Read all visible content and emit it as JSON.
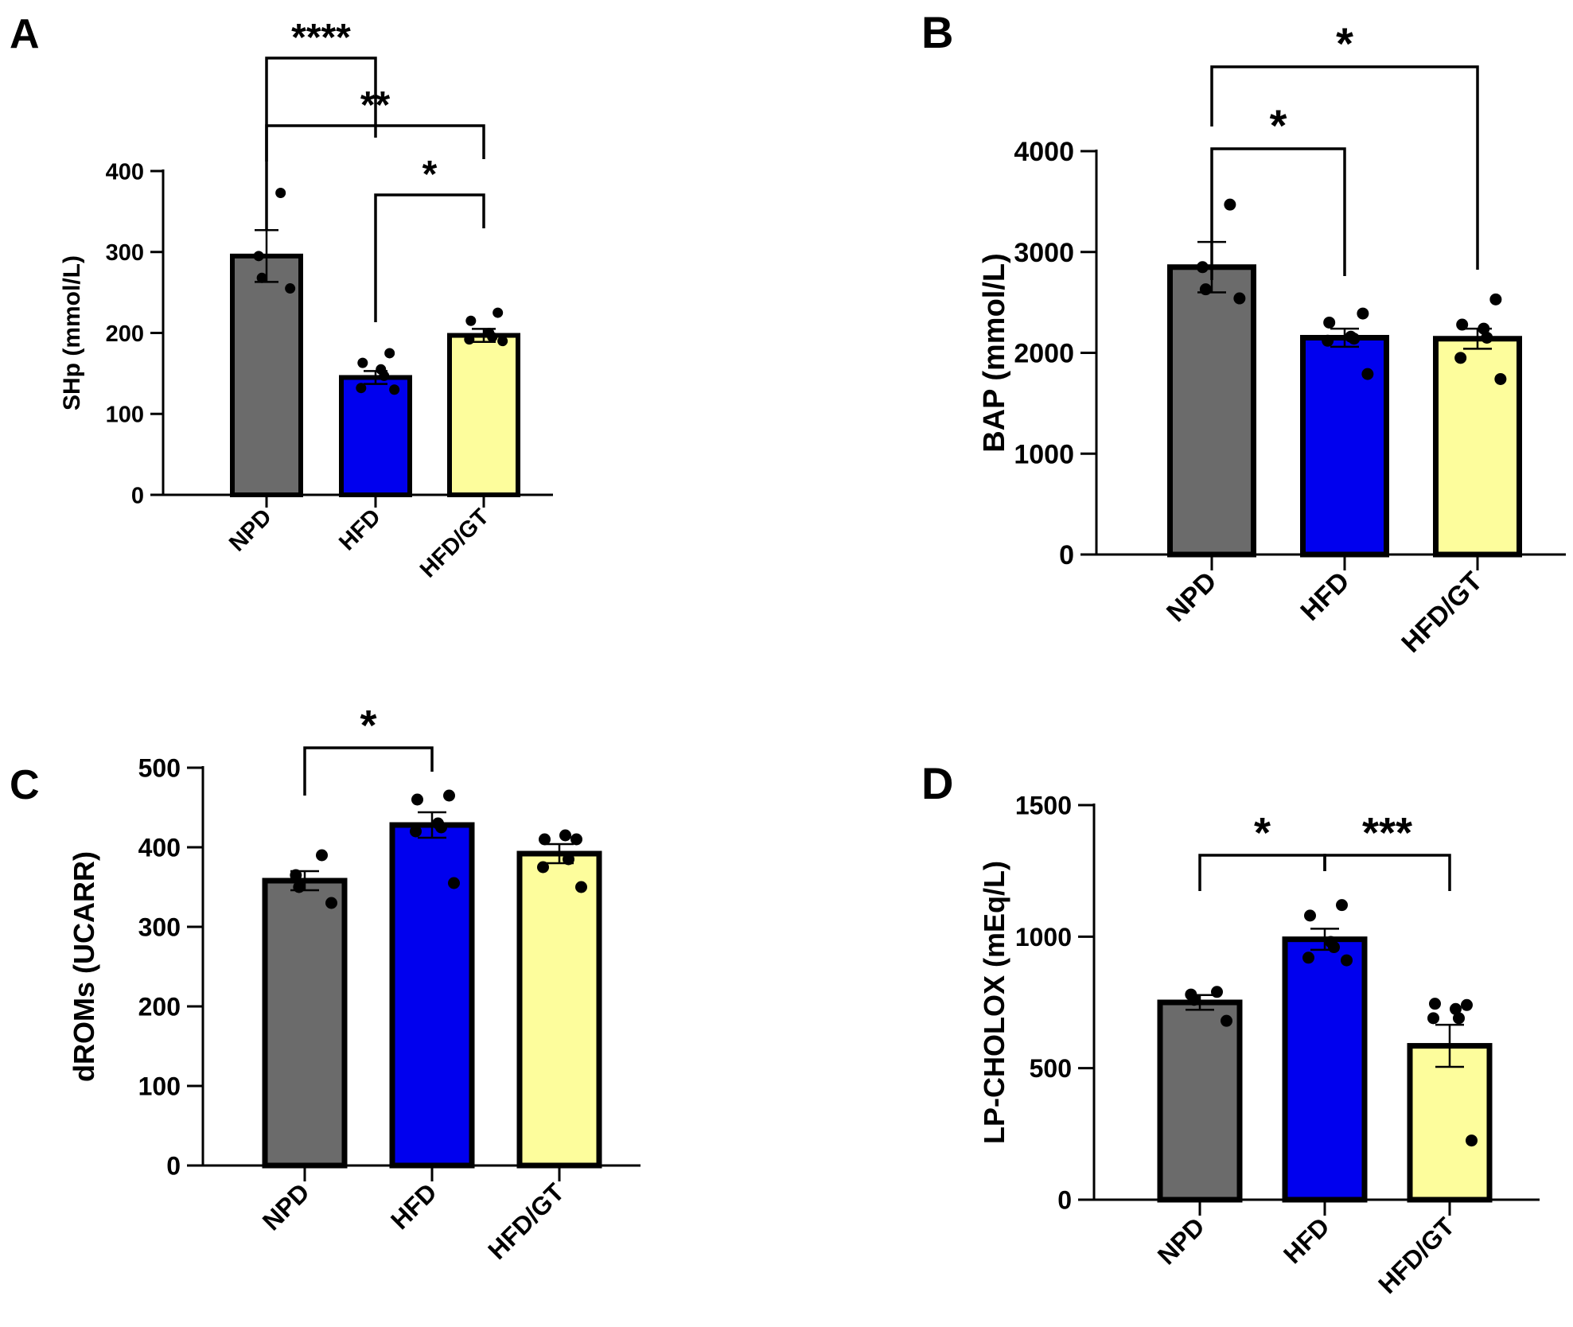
{
  "colors": {
    "NPD": "#6b6b6b",
    "HFD": "#0000ee",
    "HFD/GT": "#fdfd9c",
    "ink": "#000000"
  },
  "chart_data": [
    {
      "panel": "A",
      "type": "bar",
      "title": "",
      "xlabel": "",
      "ylabel": "SHp (mmol/L)",
      "ylim": [
        0,
        400
      ],
      "yticks": [
        "0",
        "100",
        "200",
        "300",
        "400"
      ],
      "categories": [
        "NPD",
        "HFD",
        "HFD/GT"
      ],
      "values": [
        295,
        145,
        197
      ],
      "sem": [
        32,
        8,
        8
      ],
      "points": [
        [
          373,
          295,
          268,
          255
        ],
        [
          175,
          163,
          155,
          147,
          132,
          130
        ],
        [
          225,
          215,
          200,
          195,
          192,
          190
        ]
      ],
      "comparisons": [
        {
          "from": 0,
          "to": 1,
          "label": "****"
        },
        {
          "from": 0,
          "to": 2,
          "label": "**"
        },
        {
          "from": 1,
          "to": 2,
          "label": "*"
        }
      ]
    },
    {
      "panel": "B",
      "type": "bar",
      "title": "",
      "xlabel": "",
      "ylabel": "BAP (mmol/L)",
      "ylim": [
        0,
        4000
      ],
      "yticks": [
        "0",
        "1000",
        "2000",
        "3000",
        "4000"
      ],
      "categories": [
        "NPD",
        "HFD",
        "HFD/GT"
      ],
      "values": [
        2850,
        2150,
        2140
      ],
      "sem": [
        250,
        90,
        100
      ],
      "points": [
        [
          3470,
          2850,
          2630,
          2540
        ],
        [
          2390,
          2300,
          2160,
          2140,
          2120,
          1790
        ],
        [
          2530,
          2280,
          2240,
          2150,
          1950,
          1740
        ]
      ],
      "comparisons": [
        {
          "from": 0,
          "to": 1,
          "label": "*"
        },
        {
          "from": 0,
          "to": 2,
          "label": "*"
        }
      ]
    },
    {
      "panel": "C",
      "type": "bar",
      "title": "",
      "xlabel": "",
      "ylabel": "dROMs (UCARR)",
      "ylim": [
        0,
        500
      ],
      "yticks": [
        "0",
        "100",
        "200",
        "300",
        "400",
        "500"
      ],
      "categories": [
        "NPD",
        "HFD",
        "HFD/GT"
      ],
      "values": [
        358,
        428,
        392
      ],
      "sem": [
        12,
        16,
        12
      ],
      "points": [
        [
          390,
          365,
          350,
          330
        ],
        [
          465,
          460,
          430,
          425,
          420,
          355
        ],
        [
          410,
          410,
          415,
          385,
          375,
          350
        ]
      ],
      "comparisons": [
        {
          "from": 0,
          "to": 1,
          "label": "*"
        }
      ]
    },
    {
      "panel": "D",
      "type": "bar",
      "title": "",
      "xlabel": "",
      "ylabel": "LP-CHOLOX (mEq/L)",
      "ylim": [
        0,
        1500
      ],
      "yticks": [
        "0",
        "500",
        "1000",
        "1500"
      ],
      "categories": [
        "NPD",
        "HFD",
        "HFD/GT"
      ],
      "values": [
        750,
        990,
        585
      ],
      "sem": [
        28,
        40,
        80
      ],
      "points": [
        [
          790,
          780,
          760,
          680
        ],
        [
          1120,
          1080,
          980,
          960,
          920,
          910
        ],
        [
          740,
          745,
          725,
          690,
          690,
          225
        ]
      ],
      "comparisons": [
        {
          "from": 0,
          "to": 1,
          "label": "*"
        },
        {
          "from": 1,
          "to": 2,
          "label": "***"
        }
      ]
    }
  ]
}
